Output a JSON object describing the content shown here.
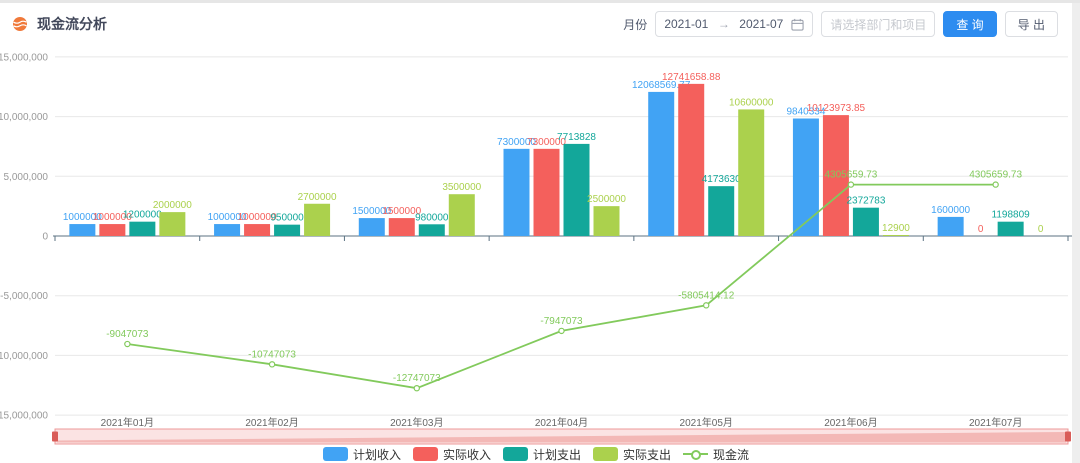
{
  "header": {
    "title": "现金流分析",
    "month_label": "月份",
    "date_start": "2021-01",
    "date_separator": "→",
    "date_end": "2021-07",
    "dept_placeholder": "请选择部门和项目",
    "query_label": "查 询",
    "export_label": "导 出"
  },
  "colors": {
    "primary_button": "#2d8cf0",
    "title_icon": "#f0793a",
    "grid_line": "#e8e8e8",
    "axis_line": "#5b7282",
    "y_tick_text": "#999999",
    "x_tick_text": "#666666",
    "legend_text": "#333333",
    "slider_fill": "#fbe3e3",
    "slider_border": "#ec9a98",
    "slider_shadow": "#f2b2b0",
    "slider_handle": "#d95c58"
  },
  "chart_data": {
    "type": "bar+line",
    "title": "现金流分析",
    "categories": [
      "2021年01月",
      "2021年02月",
      "2021年03月",
      "2021年04月",
      "2021年05月",
      "2021年06月",
      "2021年07月"
    ],
    "series": [
      {
        "name": "计划收入",
        "type": "bar",
        "color": "#41a3f4",
        "values": [
          1000000,
          1000000,
          1500000,
          7300000,
          12068569.77,
          9840334,
          1600000
        ]
      },
      {
        "name": "实际收入",
        "type": "bar",
        "color": "#f4605c",
        "values": [
          1000000,
          1000000,
          1500000,
          7300000,
          12741658.88,
          10123973.85,
          0
        ]
      },
      {
        "name": "计划支出",
        "type": "bar",
        "color": "#13a79a",
        "values": [
          1200000,
          950000,
          980000,
          7713828,
          4173630,
          2372783,
          1198809
        ]
      },
      {
        "name": "实际支出",
        "type": "bar",
        "color": "#abd14d",
        "values": [
          2000000,
          2700000,
          3500000,
          2500000,
          10600000,
          12900,
          0
        ]
      },
      {
        "name": "现金流",
        "type": "line",
        "color": "#82ca5c",
        "values": [
          -9047073,
          -10747073,
          -12747073,
          -7947073,
          -5805414.12,
          4305659.73,
          4305659.73
        ]
      }
    ],
    "yticks": [
      {
        "value": 15000000,
        "label": "15,000,000"
      },
      {
        "value": 10000000,
        "label": "10,000,000"
      },
      {
        "value": 5000000,
        "label": "5,000,000"
      },
      {
        "value": 0,
        "label": "0"
      },
      {
        "value": -5000000,
        "label": "-5,000,000"
      },
      {
        "value": -10000000,
        "label": "-10,000,000"
      },
      {
        "value": -15000000,
        "label": "-15,000,000"
      }
    ],
    "ylim": [
      -15000000,
      15000000
    ],
    "grid": true,
    "legend_position": "bottom",
    "has_datazoom_slider": true
  }
}
